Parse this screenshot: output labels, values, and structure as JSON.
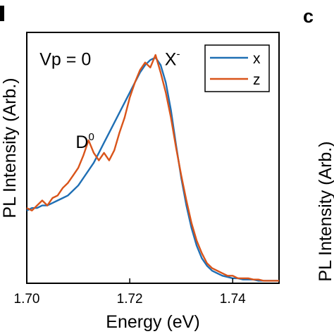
{
  "panel_letters": {
    "right": "c"
  },
  "chart_data": {
    "type": "line",
    "xlabel": "Energy (eV)",
    "ylabel": "PL Intensity (Arb.)",
    "right_panel_ylabel_fragment": "PL Intensity (Arb.)",
    "xlim": [
      1.7,
      1.749
    ],
    "ylim": [
      0,
      1.0
    ],
    "x_ticks": [
      1.7,
      1.72,
      1.74
    ],
    "x_tick_labels": [
      "1.70",
      "1.72",
      "1.74"
    ],
    "y_ticks_shown": false,
    "grid": false,
    "legend_position": "top-right",
    "annotations": [
      {
        "text": "Vp = 0",
        "x": 1.7025,
        "y": 0.87
      },
      {
        "base": "X",
        "sup": "-",
        "x": 1.7268,
        "y": 0.87
      },
      {
        "base": "D",
        "sup": "0",
        "x": 1.7095,
        "y": 0.54
      }
    ],
    "series": [
      {
        "name": "x",
        "color": "#1f6fb4",
        "x": [
          1.7,
          1.701,
          1.702,
          1.703,
          1.704,
          1.705,
          1.706,
          1.707,
          1.708,
          1.709,
          1.71,
          1.711,
          1.712,
          1.713,
          1.714,
          1.715,
          1.716,
          1.717,
          1.718,
          1.719,
          1.72,
          1.721,
          1.722,
          1.723,
          1.724,
          1.725,
          1.726,
          1.727,
          1.728,
          1.729,
          1.73,
          1.731,
          1.732,
          1.733,
          1.734,
          1.735,
          1.736,
          1.737,
          1.738,
          1.739,
          1.74,
          1.741,
          1.742,
          1.743,
          1.744,
          1.745,
          1.746,
          1.747,
          1.748,
          1.749
        ],
        "y": [
          0.29,
          0.3,
          0.3,
          0.31,
          0.31,
          0.32,
          0.33,
          0.34,
          0.35,
          0.37,
          0.39,
          0.42,
          0.45,
          0.48,
          0.52,
          0.56,
          0.6,
          0.64,
          0.68,
          0.72,
          0.76,
          0.8,
          0.84,
          0.87,
          0.89,
          0.9,
          0.87,
          0.8,
          0.69,
          0.55,
          0.42,
          0.31,
          0.22,
          0.15,
          0.1,
          0.07,
          0.05,
          0.04,
          0.03,
          0.025,
          0.02,
          0.02,
          0.015,
          0.015,
          0.015,
          0.01,
          0.01,
          0.01,
          0.01,
          0.01
        ]
      },
      {
        "name": "z",
        "color": "#d9541a",
        "x": [
          1.7,
          1.701,
          1.702,
          1.703,
          1.704,
          1.705,
          1.706,
          1.707,
          1.708,
          1.709,
          1.71,
          1.711,
          1.712,
          1.713,
          1.714,
          1.715,
          1.716,
          1.717,
          1.718,
          1.719,
          1.72,
          1.721,
          1.722,
          1.723,
          1.724,
          1.725,
          1.726,
          1.727,
          1.728,
          1.729,
          1.73,
          1.731,
          1.732,
          1.733,
          1.734,
          1.735,
          1.736,
          1.737,
          1.738,
          1.739,
          1.74,
          1.741,
          1.742,
          1.743,
          1.744,
          1.745,
          1.746,
          1.747,
          1.748,
          1.749
        ],
        "y": [
          0.3,
          0.29,
          0.31,
          0.33,
          0.31,
          0.34,
          0.35,
          0.38,
          0.4,
          0.43,
          0.46,
          0.51,
          0.57,
          0.52,
          0.49,
          0.52,
          0.49,
          0.53,
          0.6,
          0.66,
          0.74,
          0.8,
          0.85,
          0.88,
          0.86,
          0.91,
          0.84,
          0.76,
          0.66,
          0.54,
          0.43,
          0.33,
          0.24,
          0.17,
          0.12,
          0.08,
          0.06,
          0.05,
          0.04,
          0.03,
          0.03,
          0.02,
          0.02,
          0.02,
          0.015,
          0.015,
          0.01,
          0.01,
          0.01,
          0.01
        ]
      }
    ]
  }
}
